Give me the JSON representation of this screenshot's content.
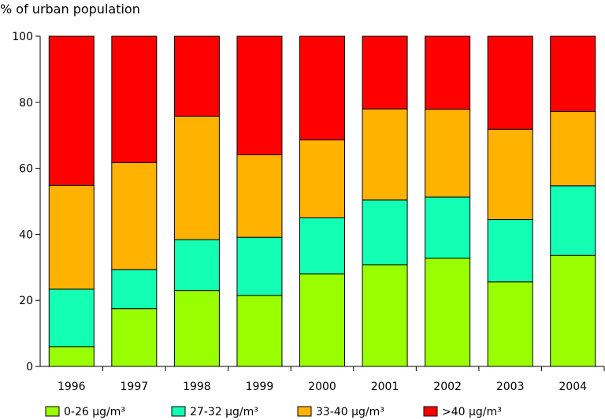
{
  "chart_data": {
    "type": "bar",
    "stacked": true,
    "ylabel": "% of urban population",
    "xlabel": "",
    "title": "",
    "ylim": [
      0,
      100
    ],
    "yticks": [
      0,
      20,
      40,
      60,
      80,
      100
    ],
    "grid": false,
    "legend_position": "bottom",
    "categories": [
      "1996",
      "1997",
      "1998",
      "1999",
      "2000",
      "2001",
      "2002",
      "2003",
      "2004"
    ],
    "series": [
      {
        "name": "0-26 µg/m³",
        "color": "#99ff00",
        "values": [
          6,
          17.5,
          23,
          21.5,
          28,
          30.8,
          32.8,
          25.6,
          33.6
        ]
      },
      {
        "name": "27-32 µg/m³",
        "color": "#12ffb4",
        "values": [
          17.4,
          11.8,
          15.4,
          17.6,
          17,
          19.6,
          18.5,
          18.9,
          21.1
        ]
      },
      {
        "name": "33-40 µg/m³",
        "color": "#ffb200",
        "values": [
          31.4,
          32.4,
          37.4,
          25,
          23.6,
          27.6,
          26.6,
          27.3,
          22.5
        ]
      },
      {
        "name": ">40 µg/m³",
        "color": "#ff0000",
        "values": [
          45.2,
          38.3,
          24.2,
          35.9,
          31.4,
          22,
          22.1,
          28.2,
          22.8
        ]
      }
    ]
  }
}
